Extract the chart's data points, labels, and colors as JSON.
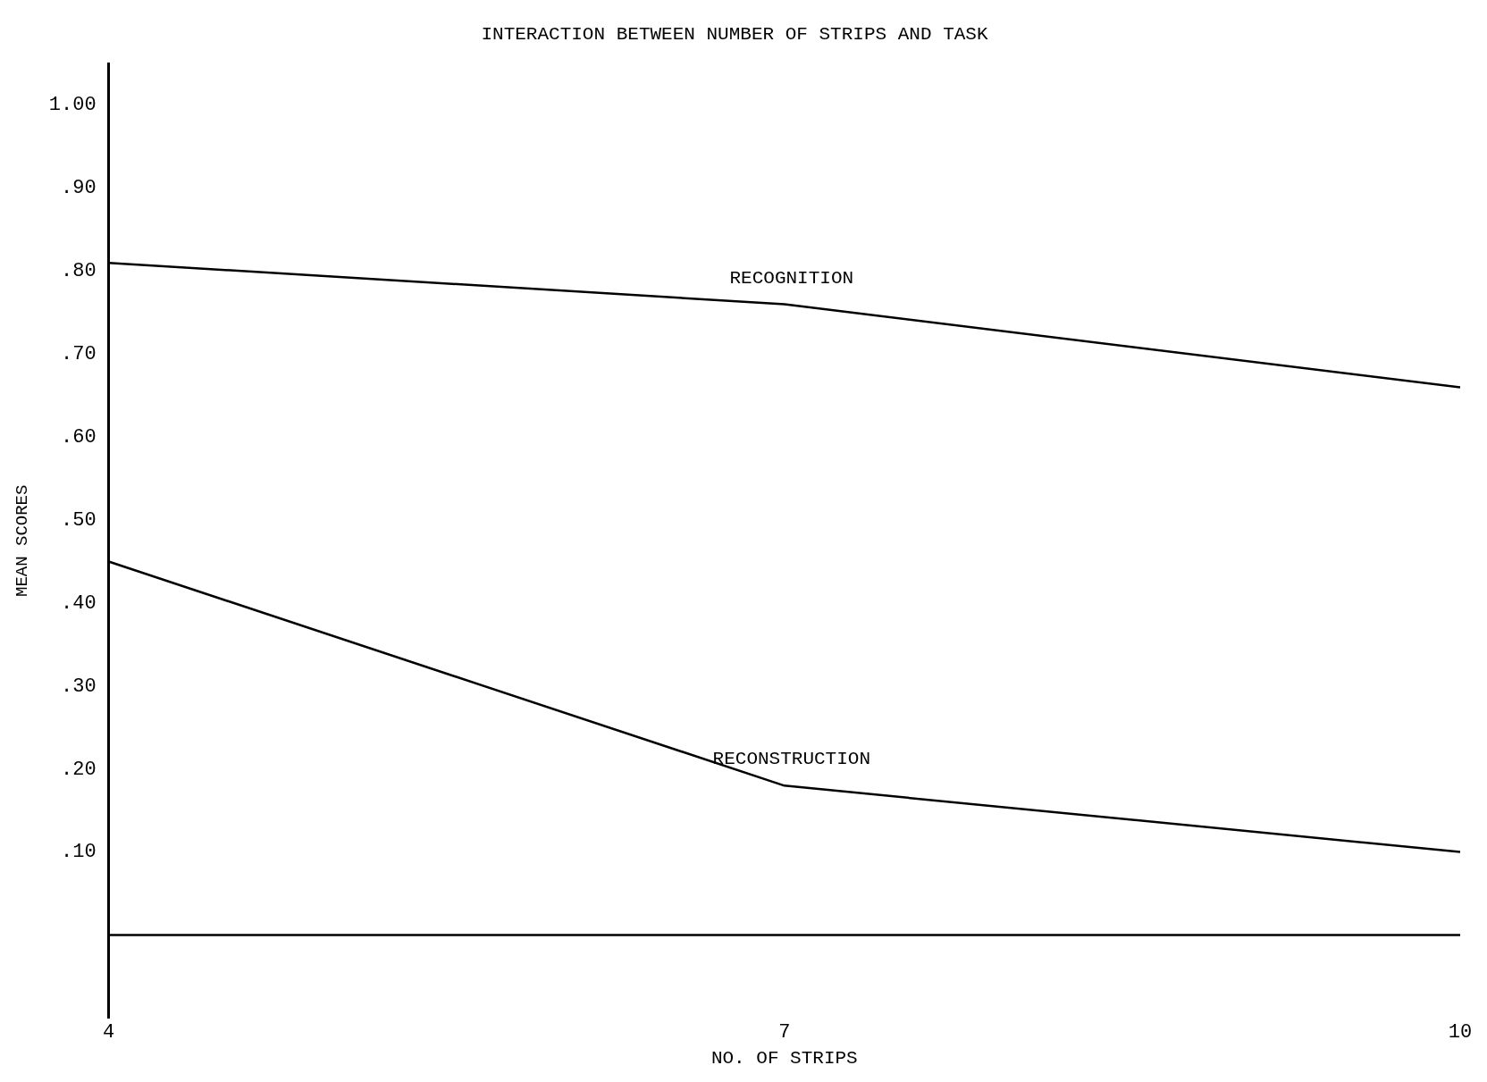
{
  "chart_data": {
    "type": "line",
    "title": "INTERACTION BETWEEN NUMBER OF STRIPS AND TASK",
    "xlabel": "NO. OF STRIPS",
    "ylabel": "MEAN SCORES",
    "x": [
      4,
      7,
      10
    ],
    "series": [
      {
        "name": "RECOGNITION",
        "color": "#000000",
        "values": [
          0.81,
          0.76,
          0.66
        ]
      },
      {
        "name": "RECONSTRUCTION",
        "color": "#000000",
        "values": [
          0.45,
          0.18,
          0.1
        ]
      }
    ],
    "xlim": [
      4,
      10
    ],
    "xticks": [
      4,
      7,
      10
    ],
    "ylim": [
      -0.1,
      1.05
    ],
    "yticks": [
      {
        "value": 0.1,
        "label": ".10"
      },
      {
        "value": 0.2,
        "label": ".20"
      },
      {
        "value": 0.3,
        "label": ".30"
      },
      {
        "value": 0.4,
        "label": ".40"
      },
      {
        "value": 0.5,
        "label": ".50"
      },
      {
        "value": 0.6,
        "label": ".60"
      },
      {
        "value": 0.7,
        "label": ".70"
      },
      {
        "value": 0.8,
        "label": ".80"
      },
      {
        "value": 0.9,
        "label": ".90"
      },
      {
        "value": 1,
        "label": "1.00"
      }
    ],
    "ref_lines": [
      {
        "axis": "y",
        "value": 0,
        "color": "#000000"
      }
    ],
    "grid": false,
    "legend": false,
    "marker": "none",
    "line_style": "solid"
  }
}
